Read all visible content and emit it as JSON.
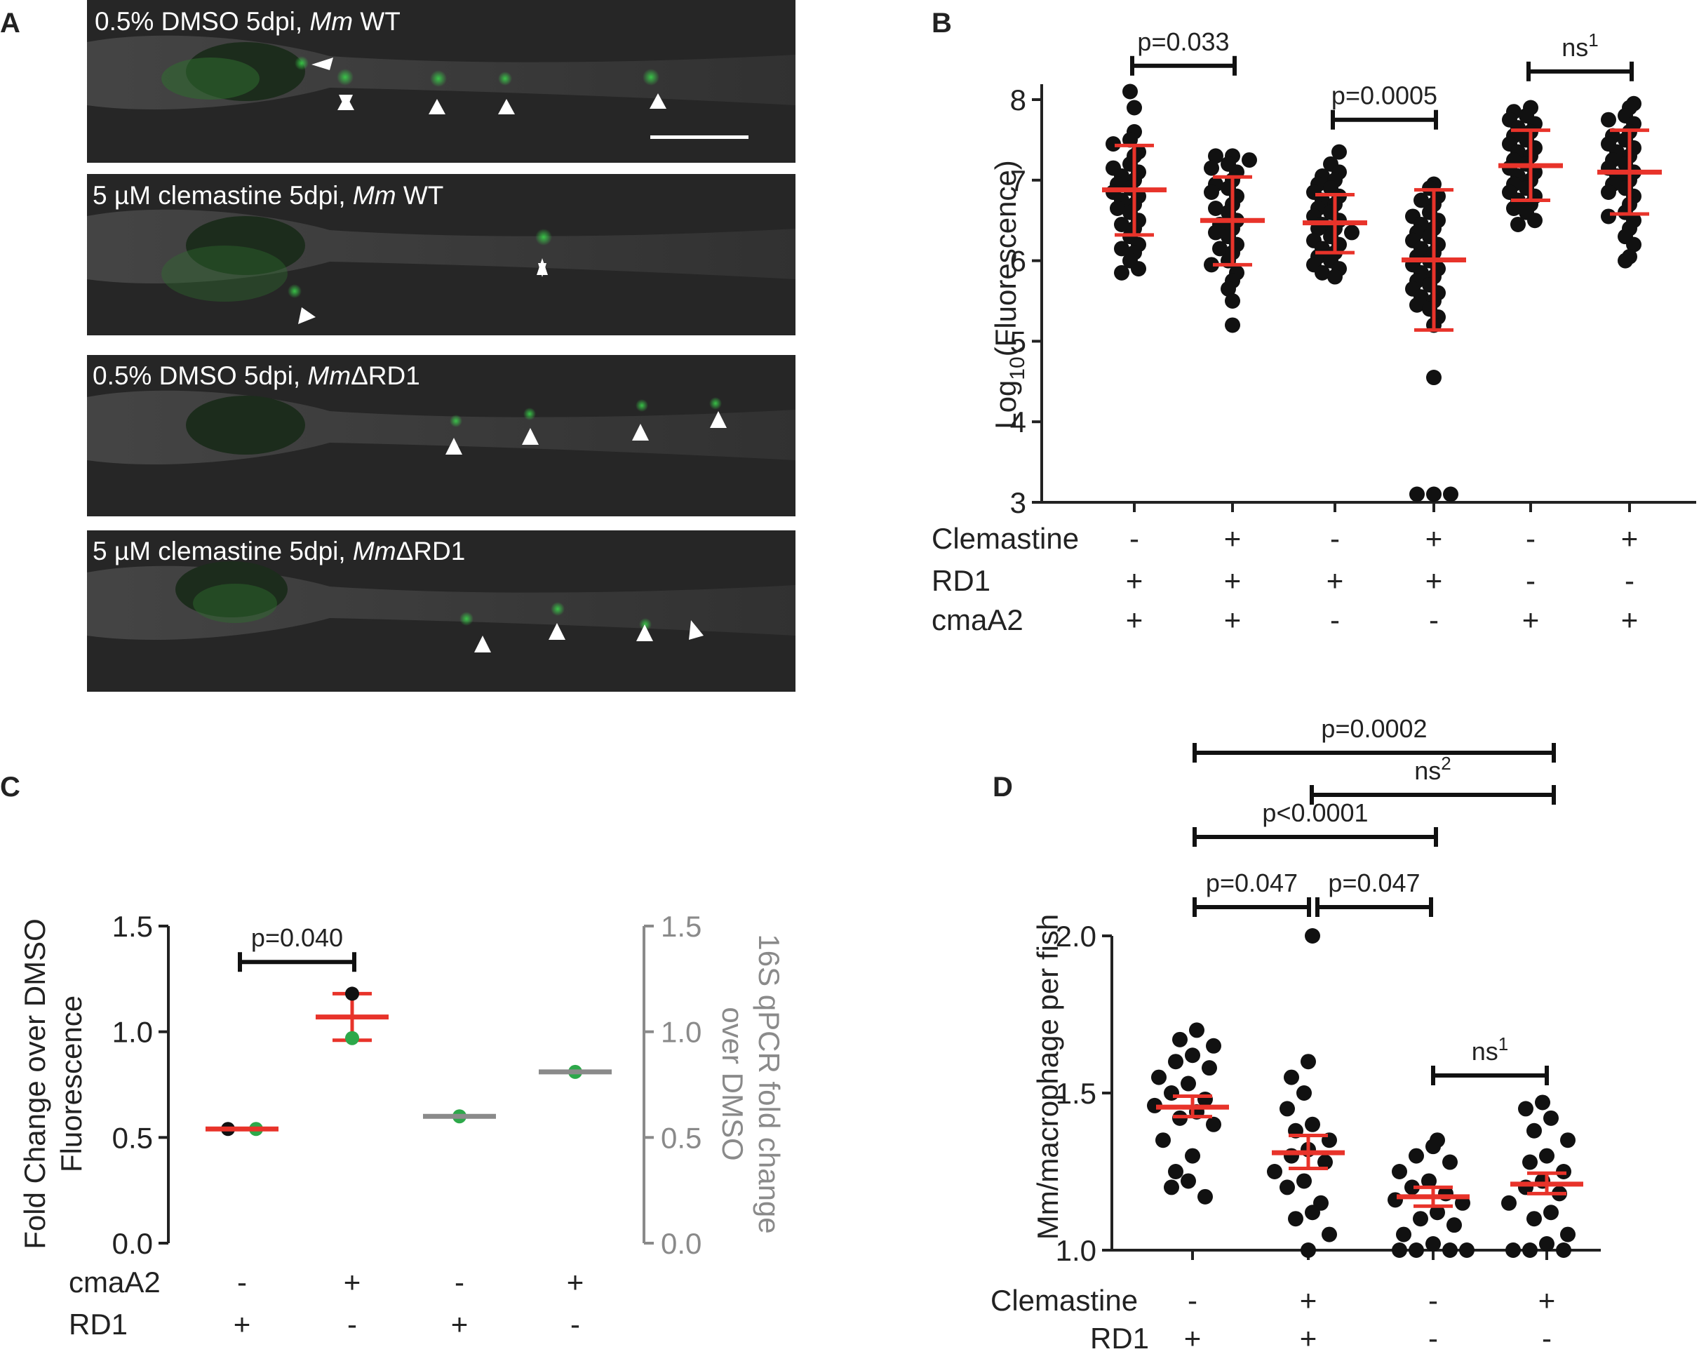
{
  "panels": {
    "A": {
      "letter": "A",
      "images": [
        {
          "label": "0.5% DMSO 5dpi, ",
          "italic": "Mm",
          "suffix": " WT",
          "arrowheads": "white-arrowhead-icon x5"
        },
        {
          "label": "5 µM clemastine 5dpi, ",
          "italic": "Mm",
          "suffix": " WT",
          "arrowheads": "white-arrowhead-icon x2"
        },
        {
          "label": "0.5% DMSO 5dpi, ",
          "italic": "Mm",
          "suffix": "ΔRD1",
          "arrowheads": "white-arrowhead-icon x4"
        },
        {
          "label": "5 µM clemastine 5dpi, ",
          "italic": "Mm",
          "suffix": "ΔRD1",
          "arrowheads": "white-arrowhead-icon x4"
        }
      ],
      "colors": {
        "background": "#262626",
        "fluorescence": "#3ad24a",
        "arrowhead": "#ffffff"
      }
    },
    "B": {
      "letter": "B"
    },
    "C": {
      "letter": "C"
    },
    "D": {
      "letter": "D"
    }
  },
  "chart_data": [
    {
      "panel": "B",
      "type": "scatter",
      "ylabel": "Log10(Fluorescence)",
      "ylabel_main": "Log",
      "ylabel_sub": "10",
      "ylabel_rest": "(Fluorescence)",
      "ylim": [
        3,
        8.2
      ],
      "yticks": [
        "3",
        "4",
        "5",
        "6",
        "7",
        "8"
      ],
      "row_labels": [
        "Clemastine",
        "RD1",
        "cmaA2"
      ],
      "conditions": [
        {
          "Clemastine": "-",
          "RD1": "+",
          "cmaA2": "+"
        },
        {
          "Clemastine": "+",
          "RD1": "+",
          "cmaA2": "+"
        },
        {
          "Clemastine": "-",
          "RD1": "+",
          "cmaA2": "-"
        },
        {
          "Clemastine": "+",
          "RD1": "+",
          "cmaA2": "-"
        },
        {
          "Clemastine": "-",
          "RD1": "-",
          "cmaA2": "+"
        },
        {
          "Clemastine": "+",
          "RD1": "-",
          "cmaA2": "+"
        }
      ],
      "groups": [
        {
          "mean": 6.88,
          "sd_low": 6.32,
          "sd_high": 7.43,
          "points": [
            8.1,
            7.9,
            7.6,
            7.5,
            7.45,
            7.35,
            7.3,
            7.2,
            7.15,
            7.1,
            7.05,
            7.0,
            6.95,
            6.9,
            6.85,
            6.8,
            6.75,
            6.7,
            6.65,
            6.6,
            6.5,
            6.45,
            6.4,
            6.3,
            6.2,
            6.15,
            6.1,
            6.0,
            5.9,
            5.85
          ]
        },
        {
          "mean": 6.5,
          "sd_low": 5.95,
          "sd_high": 7.04,
          "points": [
            7.3,
            7.3,
            7.25,
            7.2,
            7.15,
            7.1,
            7.0,
            6.95,
            6.9,
            6.85,
            6.8,
            6.7,
            6.65,
            6.6,
            6.5,
            6.45,
            6.4,
            6.35,
            6.3,
            6.2,
            6.15,
            6.1,
            6.0,
            5.95,
            5.85,
            5.75,
            5.65,
            5.5,
            5.2
          ]
        },
        {
          "mean": 6.47,
          "sd_low": 6.1,
          "sd_high": 6.82,
          "points": [
            7.35,
            7.2,
            7.1,
            7.05,
            7.0,
            6.95,
            6.9,
            6.85,
            6.8,
            6.75,
            6.7,
            6.65,
            6.6,
            6.55,
            6.5,
            6.45,
            6.4,
            6.4,
            6.35,
            6.3,
            6.25,
            6.2,
            6.15,
            6.1,
            6.05,
            6.0,
            5.95,
            5.9,
            5.85,
            5.8
          ]
        },
        {
          "mean": 6.01,
          "sd_low": 5.14,
          "sd_high": 6.88,
          "points": [
            6.95,
            6.9,
            6.8,
            6.75,
            6.7,
            6.6,
            6.55,
            6.5,
            6.45,
            6.4,
            6.35,
            6.3,
            6.25,
            6.2,
            6.15,
            6.1,
            6.05,
            6.0,
            5.95,
            5.9,
            5.85,
            5.8,
            5.75,
            5.7,
            5.65,
            5.6,
            5.55,
            5.5,
            5.45,
            5.4,
            5.3,
            5.2,
            4.55,
            3.1,
            3.1,
            3.1
          ]
        },
        {
          "mean": 7.18,
          "sd_low": 6.75,
          "sd_high": 7.62,
          "points": [
            7.9,
            7.85,
            7.8,
            7.75,
            7.7,
            7.65,
            7.6,
            7.55,
            7.5,
            7.45,
            7.4,
            7.35,
            7.3,
            7.25,
            7.2,
            7.15,
            7.1,
            7.05,
            7.0,
            6.95,
            6.9,
            6.85,
            6.8,
            6.75,
            6.7,
            6.65,
            6.6,
            6.5,
            6.45
          ]
        },
        {
          "mean": 7.1,
          "sd_low": 6.58,
          "sd_high": 7.62,
          "points": [
            7.95,
            7.9,
            7.8,
            7.75,
            7.7,
            7.6,
            7.55,
            7.5,
            7.45,
            7.4,
            7.35,
            7.3,
            7.25,
            7.2,
            7.15,
            7.1,
            7.05,
            7.0,
            6.95,
            6.9,
            6.85,
            6.8,
            6.7,
            6.6,
            6.55,
            6.5,
            6.4,
            6.3,
            6.2,
            6.05,
            6.0
          ]
        }
      ],
      "comparisons": [
        {
          "from": 0,
          "to": 1,
          "label": "p=0.033",
          "sup": "",
          "y": 8.42
        },
        {
          "from": 2,
          "to": 3,
          "label": "p=0.0005",
          "sup": "",
          "y": 7.75
        },
        {
          "from": 4,
          "to": 5,
          "label": "ns",
          "sup": "1",
          "y": 8.35
        }
      ],
      "colors": {
        "points": "#111111",
        "summary": "#e8332a"
      }
    },
    {
      "panel": "C",
      "type": "scatter",
      "ylabel": "Fold Change over DMSO",
      "ylabel_line2": "Fluorescence",
      "y2label": "16S qPCR fold change",
      "y2label_line2": "over DMSO",
      "ylim": [
        0,
        1.5
      ],
      "yticks": [
        "0.0",
        "0.5",
        "1.0",
        "1.5"
      ],
      "row_labels": [
        "cmaA2",
        "RD1"
      ],
      "conditions": [
        {
          "cmaA2": "-",
          "RD1": "+"
        },
        {
          "cmaA2": "+",
          "RD1": "-"
        },
        {
          "cmaA2": "-",
          "RD1": "+"
        },
        {
          "cmaA2": "+",
          "RD1": "-"
        }
      ],
      "groups": [
        {
          "mean": 0.54,
          "bar_color": "#e8332a",
          "points": [
            {
              "v": 0.54,
              "c": "#111111",
              "dx": -20
            },
            {
              "v": 0.54,
              "c": "#2da84a",
              "dx": 20
            }
          ]
        },
        {
          "mean": 1.07,
          "bar_color": "#e8332a",
          "err_low": 0.96,
          "err_high": 1.18,
          "points": [
            {
              "v": 1.18,
              "c": "#111111",
              "dx": 0
            },
            {
              "v": 0.97,
              "c": "#2da84a",
              "dx": 0
            }
          ]
        },
        {
          "mean": 0.6,
          "bar_color": "#8a8a8a",
          "points": [
            {
              "v": 0.6,
              "c": "#2da84a",
              "dx": 0
            }
          ]
        },
        {
          "mean": 0.81,
          "bar_color": "#8a8a8a",
          "points": [
            {
              "v": 0.81,
              "c": "#2da84a",
              "dx": 0
            }
          ]
        }
      ],
      "comparisons": [
        {
          "from": 0,
          "to": 1,
          "label": "p=0.040",
          "sup": "",
          "y": 1.33
        }
      ]
    },
    {
      "panel": "D",
      "type": "scatter",
      "ylabel": "Mm/macrophage per fish",
      "ylim": [
        1.0,
        2.0
      ],
      "yticks": [
        "1.0",
        "1.5",
        "2.0"
      ],
      "row_labels": [
        "Clemastine",
        "RD1"
      ],
      "conditions": [
        {
          "Clemastine": "-",
          "RD1": "+"
        },
        {
          "Clemastine": "+",
          "RD1": "+"
        },
        {
          "Clemastine": "-",
          "RD1": "-"
        },
        {
          "Clemastine": "+",
          "RD1": "-"
        }
      ],
      "groups": [
        {
          "mean": 1.455,
          "sem_low": 1.425,
          "sem_high": 1.49,
          "points": [
            1.7,
            1.67,
            1.65,
            1.62,
            1.6,
            1.58,
            1.55,
            1.53,
            1.5,
            1.48,
            1.46,
            1.44,
            1.42,
            1.4,
            1.35,
            1.3,
            1.25,
            1.22,
            1.2,
            1.17
          ]
        },
        {
          "mean": 1.31,
          "sem_low": 1.26,
          "sem_high": 1.365,
          "points": [
            2.0,
            1.6,
            1.55,
            1.5,
            1.45,
            1.4,
            1.38,
            1.35,
            1.32,
            1.3,
            1.28,
            1.25,
            1.22,
            1.2,
            1.15,
            1.12,
            1.1,
            1.05,
            1.0
          ]
        },
        {
          "mean": 1.17,
          "sem_low": 1.14,
          "sem_high": 1.2,
          "points": [
            1.35,
            1.33,
            1.3,
            1.28,
            1.25,
            1.22,
            1.2,
            1.18,
            1.16,
            1.15,
            1.12,
            1.1,
            1.08,
            1.05,
            1.02,
            1.0,
            1.0,
            1.0,
            1.0
          ]
        },
        {
          "mean": 1.21,
          "sem_low": 1.18,
          "sem_high": 1.245,
          "points": [
            1.47,
            1.45,
            1.42,
            1.38,
            1.35,
            1.3,
            1.28,
            1.25,
            1.22,
            1.2,
            1.18,
            1.15,
            1.12,
            1.1,
            1.05,
            1.02,
            1.0,
            1.0,
            1.0
          ]
        }
      ],
      "comparisons": [
        {
          "from": 0,
          "to": 3,
          "label": "p=0.0002",
          "sup": "",
          "y": 2.58
        },
        {
          "from": 1,
          "to": 3,
          "label": "ns",
          "sup": "2",
          "y": 2.43
        },
        {
          "from": 0,
          "to": 2,
          "label": "p<0.0001",
          "sup": "",
          "y": 2.28
        },
        {
          "from": 0,
          "to": 1,
          "label": "p=0.047",
          "sup": "",
          "y": 2.1
        },
        {
          "from": 1,
          "to": 2,
          "label": "p=0.047",
          "sup": "",
          "y": 2.1
        },
        {
          "from": 2,
          "to": 3,
          "label": "ns",
          "sup": "1",
          "y": 1.55
        }
      ],
      "colors": {
        "points": "#111111",
        "summary": "#e8332a"
      }
    }
  ]
}
